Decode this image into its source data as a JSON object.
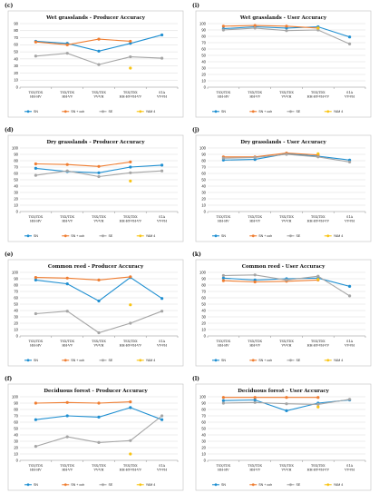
{
  "series_styles": [
    {
      "key": "SN",
      "name": "SN",
      "color": "#1f8fd1"
    },
    {
      "key": "SNcoh",
      "name": "SN + coh",
      "color": "#ef7d31"
    },
    {
      "key": "SE",
      "name": "SE",
      "color": "#a5a5a5"
    },
    {
      "key": "YAM4",
      "name": "YAM 4",
      "color": "#f9c414"
    }
  ],
  "categories": [
    [
      "TSX/TDX",
      "HH-HV"
    ],
    [
      "TSX/TDX",
      "HH-VV"
    ],
    [
      "TSX/TDX",
      "VV-VH"
    ],
    [
      "TSX/TDX",
      "HH-HV-VH-VV"
    ],
    [
      "S1A",
      "VV-VH"
    ]
  ],
  "chart_data": [
    {
      "panel": "(c)",
      "type": "line",
      "title": "Wet grasslands - Producer Accuracy",
      "ylim": [
        0,
        90
      ],
      "ystep": 10,
      "grid": true,
      "legend": "bottom",
      "series": [
        {
          "name": "SN",
          "values": [
            65,
            62,
            51,
            62,
            74
          ]
        },
        {
          "name": "SN + coh",
          "values": [
            64,
            60,
            68,
            65,
            null
          ]
        },
        {
          "name": "SE",
          "values": [
            44,
            48,
            32,
            43,
            41
          ]
        },
        {
          "name": "YAM 4",
          "values": [
            null,
            null,
            null,
            27,
            null
          ]
        }
      ]
    },
    {
      "panel": "(i)",
      "type": "line",
      "title": "Wet grasslands - User Accuracy",
      "ylim": [
        0,
        100
      ],
      "ystep": 10,
      "grid": true,
      "legend": "bottom",
      "series": [
        {
          "name": "SN",
          "values": [
            92,
            95,
            93,
            95,
            79
          ]
        },
        {
          "name": "SN + coh",
          "values": [
            96,
            97,
            96,
            93,
            null
          ]
        },
        {
          "name": "SE",
          "values": [
            90,
            93,
            89,
            90,
            68
          ]
        },
        {
          "name": "YAM 4",
          "values": [
            null,
            null,
            null,
            93,
            null
          ]
        }
      ]
    },
    {
      "panel": "(d)",
      "type": "line",
      "title": "Dry grasslands - Producer Accuracy",
      "ylim": [
        0,
        100
      ],
      "ystep": 10,
      "grid": true,
      "legend": "bottom",
      "series": [
        {
          "name": "SN",
          "values": [
            68,
            63,
            61,
            70,
            73
          ]
        },
        {
          "name": "SN + coh",
          "values": [
            75,
            74,
            71,
            78,
            null
          ]
        },
        {
          "name": "SE",
          "values": [
            57,
            64,
            55,
            61,
            64
          ]
        },
        {
          "name": "YAM 4",
          "values": [
            null,
            null,
            null,
            48,
            null
          ]
        }
      ]
    },
    {
      "panel": "(j)",
      "type": "line",
      "title": "Dry grasslands - User Accuracy",
      "ylim": [
        0,
        100
      ],
      "ystep": 10,
      "grid": true,
      "legend": "bottom",
      "series": [
        {
          "name": "SN",
          "values": [
            81,
            82,
            91,
            87,
            81
          ]
        },
        {
          "name": "SN + coh",
          "values": [
            86,
            86,
            92,
            89,
            null
          ]
        },
        {
          "name": "SE",
          "values": [
            84,
            85,
            90,
            86,
            78
          ]
        },
        {
          "name": "YAM 4",
          "values": [
            null,
            null,
            null,
            91,
            null
          ]
        }
      ]
    },
    {
      "panel": "(e)",
      "type": "line",
      "title": "Common reed - Producer Accuracy",
      "ylim": [
        0,
        100
      ],
      "ystep": 10,
      "grid": true,
      "legend": "bottom",
      "series": [
        {
          "name": "SN",
          "values": [
            88,
            82,
            55,
            92,
            59
          ]
        },
        {
          "name": "SN + coh",
          "values": [
            92,
            91,
            88,
            93,
            null
          ]
        },
        {
          "name": "SE",
          "values": [
            35,
            39,
            5,
            20,
            39
          ]
        },
        {
          "name": "YAM 4",
          "values": [
            null,
            null,
            null,
            49,
            null
          ]
        }
      ]
    },
    {
      "panel": "(k)",
      "type": "line",
      "title": "Common reed - User Accuracy",
      "ylim": [
        0,
        100
      ],
      "ystep": 10,
      "grid": true,
      "legend": "bottom",
      "series": [
        {
          "name": "SN",
          "values": [
            91,
            88,
            90,
            91,
            78
          ]
        },
        {
          "name": "SN + coh",
          "values": [
            87,
            85,
            86,
            88,
            null
          ]
        },
        {
          "name": "SE",
          "values": [
            95,
            96,
            88,
            94,
            63
          ]
        },
        {
          "name": "YAM 4",
          "values": [
            null,
            null,
            null,
            89,
            null
          ]
        }
      ]
    },
    {
      "panel": "(f)",
      "type": "line",
      "title": "Deciduous forest - Producer Accuracy",
      "ylim": [
        0,
        100
      ],
      "ystep": 10,
      "grid": true,
      "legend": "bottom",
      "series": [
        {
          "name": "SN",
          "values": [
            64,
            70,
            68,
            83,
            64
          ]
        },
        {
          "name": "SN + coh",
          "values": [
            90,
            91,
            90,
            92,
            null
          ]
        },
        {
          "name": "SE",
          "values": [
            22,
            37,
            28,
            31,
            70
          ]
        },
        {
          "name": "YAM 4",
          "values": [
            null,
            null,
            null,
            10,
            null
          ]
        }
      ]
    },
    {
      "panel": "(l)",
      "type": "line",
      "title": "Deciduous forest - User Accuracy",
      "ylim": [
        0,
        100
      ],
      "ystep": 10,
      "grid": true,
      "legend": "bottom",
      "series": [
        {
          "name": "SN",
          "values": [
            94,
            95,
            78,
            90,
            95
          ]
        },
        {
          "name": "SN + coh",
          "values": [
            99,
            99,
            99,
            99,
            null
          ]
        },
        {
          "name": "SE",
          "values": [
            90,
            91,
            89,
            88,
            96
          ]
        },
        {
          "name": "YAM 4",
          "values": [
            null,
            null,
            null,
            84,
            null
          ]
        }
      ]
    }
  ]
}
